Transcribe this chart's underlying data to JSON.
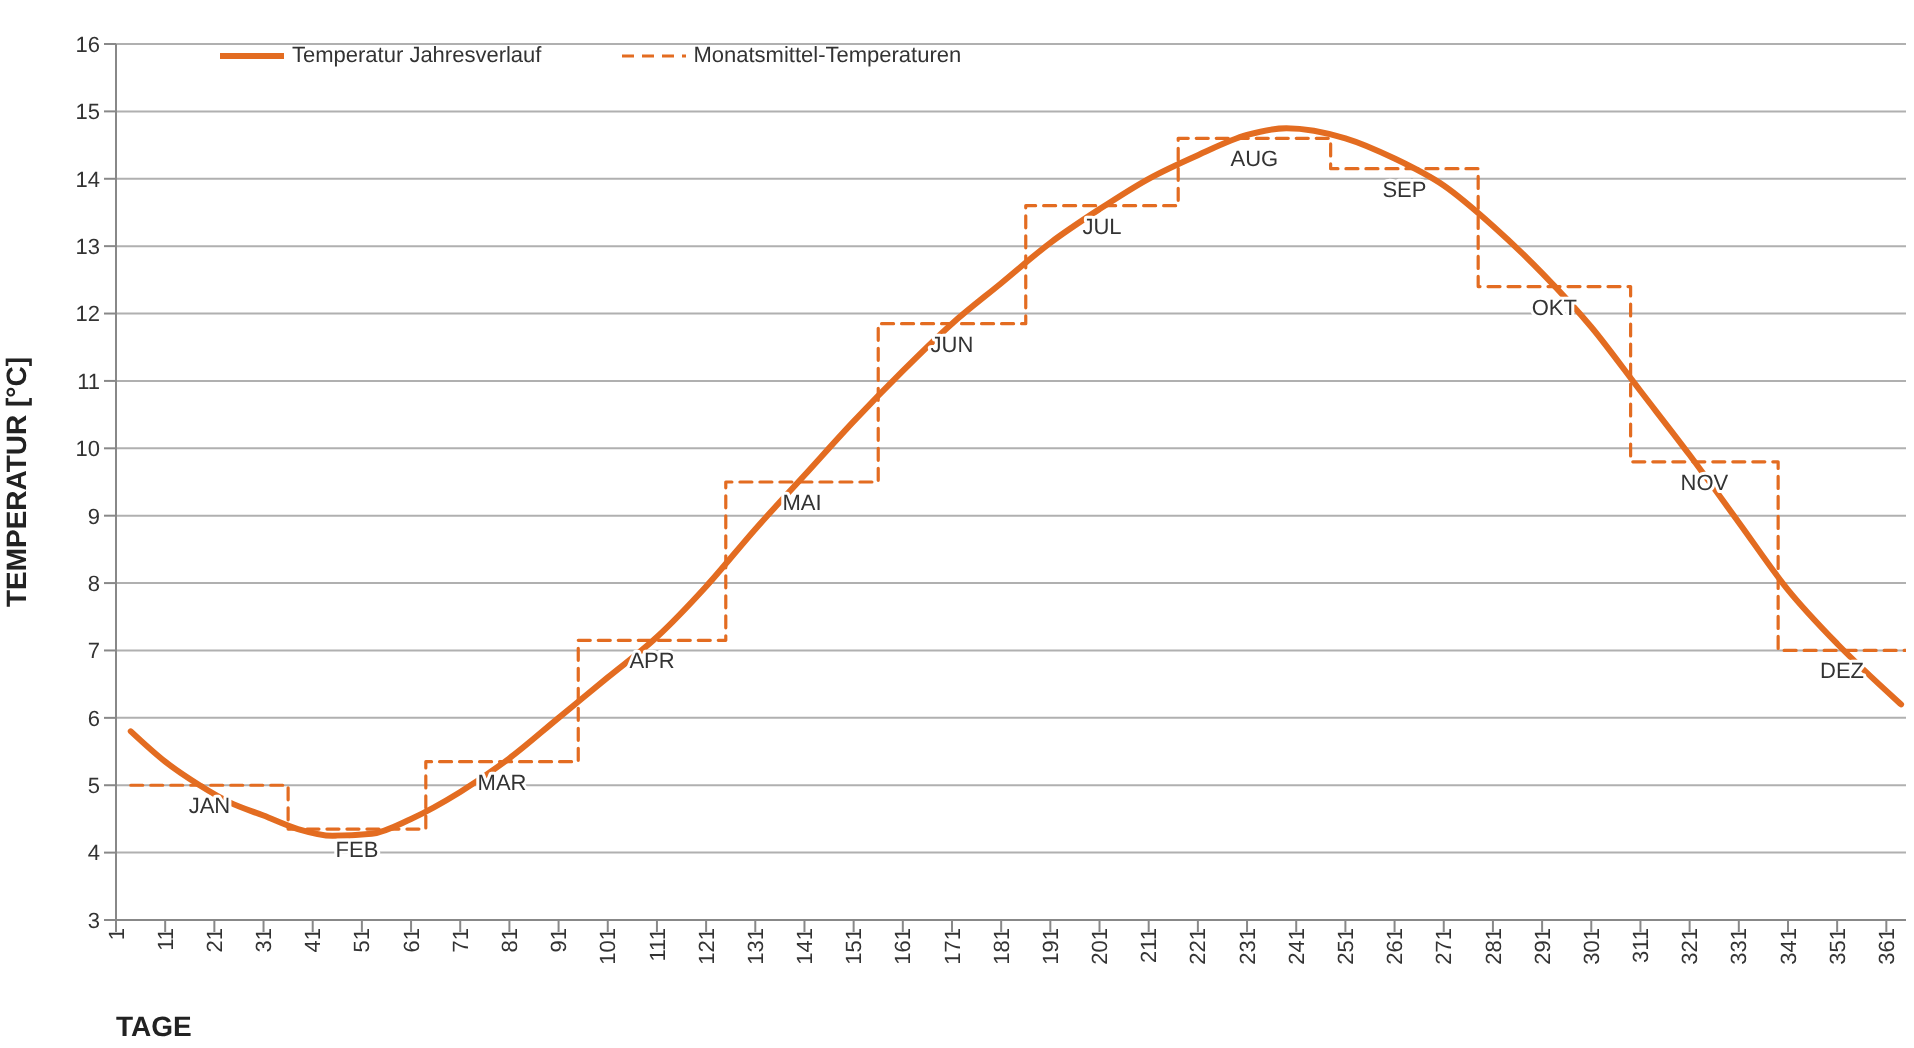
{
  "chart_data": {
    "type": "line",
    "xlabel": "TAGE",
    "ylabel": "TEMPERATUR [°C]",
    "xlim": [
      1,
      365
    ],
    "xticks": [
      1,
      11,
      21,
      31,
      41,
      51,
      61,
      71,
      81,
      91,
      101,
      111,
      121,
      131,
      141,
      151,
      161,
      171,
      181,
      191,
      201,
      211,
      221,
      231,
      241,
      251,
      261,
      271,
      281,
      291,
      301,
      311,
      321,
      331,
      341,
      351,
      361
    ],
    "ylim": [
      3,
      16
    ],
    "yticks": [
      3,
      4,
      5,
      6,
      7,
      8,
      9,
      10,
      11,
      12,
      13,
      14,
      15,
      16
    ],
    "grid": "y",
    "legend": "top left",
    "series": [
      {
        "name": "Temperatur Jahresverlauf",
        "type": "line",
        "color": "#e36c21",
        "line_style": "solid",
        "x": [
          4,
          11,
          18,
          24,
          31,
          38,
          45,
          53,
          61,
          71,
          81,
          91,
          101,
          111,
          121,
          131,
          141,
          151,
          161,
          171,
          181,
          191,
          201,
          211,
          221,
          231,
          239,
          251,
          261,
          271,
          281,
          291,
          301,
          311,
          321,
          331,
          341,
          351,
          361,
          364
        ],
        "values": [
          5.8,
          5.35,
          5.0,
          4.75,
          4.55,
          4.35,
          4.25,
          4.28,
          4.5,
          4.9,
          5.4,
          6.0,
          6.6,
          7.2,
          7.95,
          8.8,
          9.6,
          10.4,
          11.15,
          11.85,
          12.45,
          13.05,
          13.55,
          14.0,
          14.35,
          14.65,
          14.75,
          14.6,
          14.3,
          13.9,
          13.3,
          12.6,
          11.8,
          10.85,
          9.9,
          8.9,
          7.9,
          7.1,
          6.4,
          6.2
        ]
      },
      {
        "name": "Monatsmittel-Temperaturen",
        "type": "step",
        "color": "#e36c21",
        "line_style": "dashed",
        "x": [
          4,
          36,
          64,
          95,
          125,
          156,
          186,
          217,
          248,
          278,
          309,
          339,
          365
        ],
        "values": [
          5.0,
          4.35,
          5.35,
          7.15,
          9.5,
          11.85,
          13.6,
          14.6,
          14.15,
          12.4,
          9.8,
          7.0,
          7.0
        ]
      }
    ],
    "annotations": [
      {
        "text": "JAN",
        "x": 20,
        "y": 5.0
      },
      {
        "text": "FEB",
        "x": 50,
        "y": 4.35
      },
      {
        "text": "MAR",
        "x": 79.5,
        "y": 5.35
      },
      {
        "text": "APR",
        "x": 110,
        "y": 7.15
      },
      {
        "text": "MAI",
        "x": 140.5,
        "y": 9.5
      },
      {
        "text": "JUN",
        "x": 171,
        "y": 11.85
      },
      {
        "text": "JUL",
        "x": 201.5,
        "y": 13.6
      },
      {
        "text": "AUG",
        "x": 232.5,
        "y": 14.6
      },
      {
        "text": "SEP",
        "x": 263,
        "y": 14.15
      },
      {
        "text": "OKT",
        "x": 293.5,
        "y": 12.4
      },
      {
        "text": "NOV",
        "x": 324,
        "y": 9.8
      },
      {
        "text": "DEZ",
        "x": 352,
        "y": 7.0
      }
    ]
  }
}
